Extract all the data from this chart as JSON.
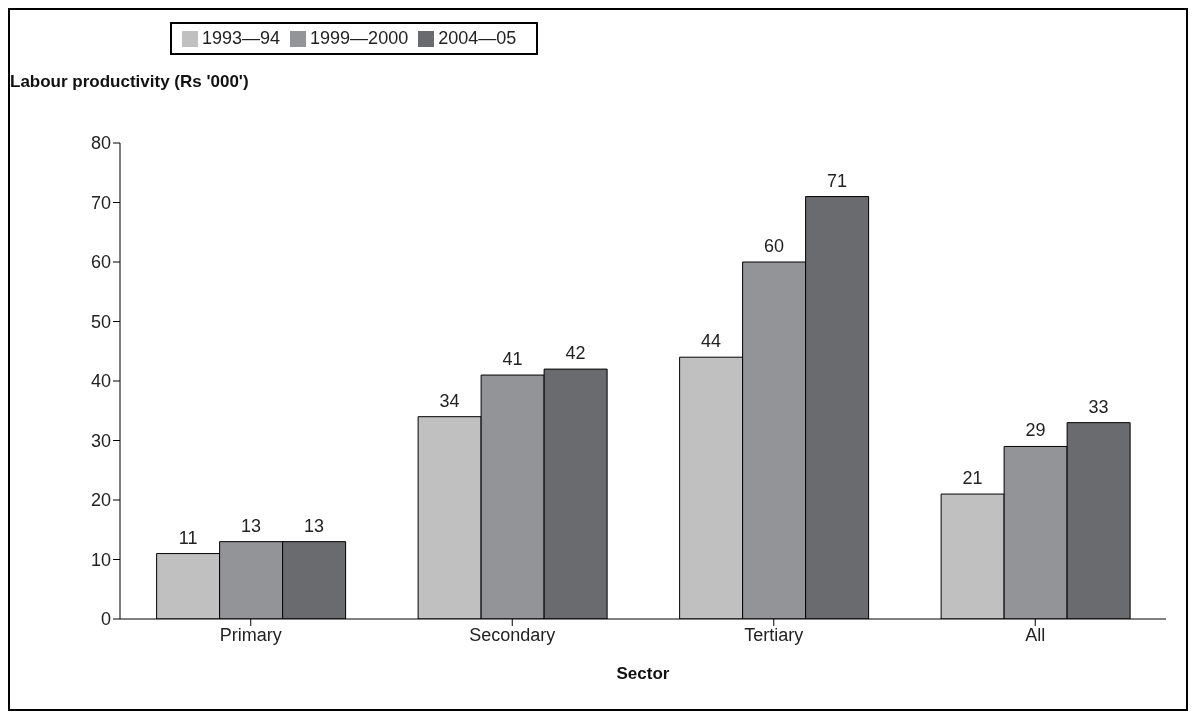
{
  "chart_data": {
    "type": "bar",
    "xlabel": "Sector",
    "ylabel": "Labour productivity (Rs '000')",
    "categories": [
      "Primary",
      "Secondary",
      "Tertiary",
      "All"
    ],
    "series": [
      {
        "name": "1993—94",
        "color": "#c0c0c0",
        "values": [
          11,
          34,
          44,
          21
        ]
      },
      {
        "name": "1999—2000",
        "color": "#939498",
        "values": [
          13,
          41,
          60,
          29
        ]
      },
      {
        "name": "2004—05",
        "color": "#6a6b6e",
        "values": [
          13,
          42,
          71,
          33
        ]
      }
    ],
    "ylim": [
      0,
      80
    ],
    "yticks": [
      0,
      10,
      20,
      30,
      40,
      50,
      60,
      70,
      80
    ],
    "grid": false,
    "legend": "top left",
    "data_labels": true
  }
}
